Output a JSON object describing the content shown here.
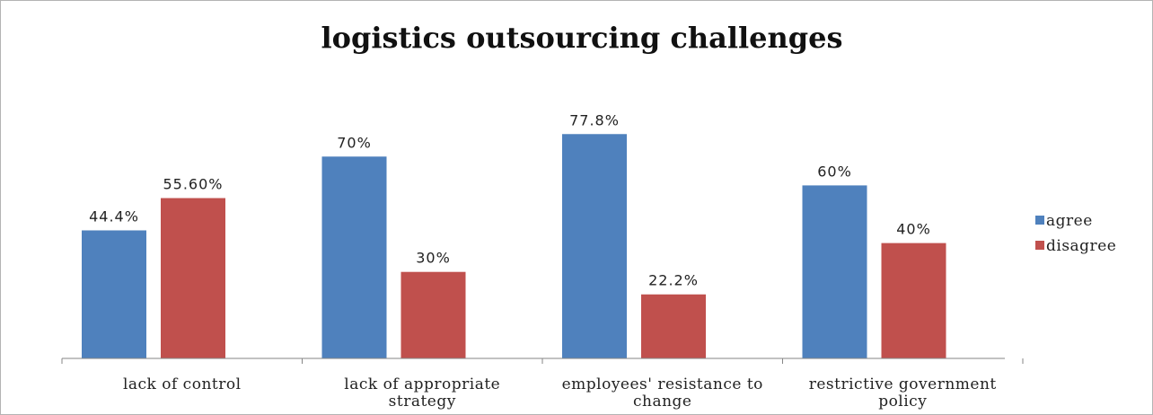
{
  "chart_data": {
    "type": "bar",
    "title": "logistics outsourcing  challenges",
    "categories": [
      [
        "lack of control"
      ],
      [
        "lack of appropriate",
        "strategy"
      ],
      [
        "employees' resistance to",
        "change"
      ],
      [
        "restrictive government",
        "policy"
      ]
    ],
    "series": [
      {
        "name": "agree",
        "color": "#4f81bd",
        "values": [
          44.4,
          70,
          77.8,
          60
        ],
        "labels": [
          "44.4%",
          "70%",
          "77.8%",
          "60%"
        ]
      },
      {
        "name": "disagree",
        "color": "#c0504d",
        "values": [
          55.6,
          30,
          22.2,
          40
        ],
        "labels": [
          "55.60%",
          "30%",
          "22.2%",
          "40%"
        ]
      }
    ],
    "ylim": [
      0,
      100
    ],
    "grid": false,
    "legend": "right"
  }
}
